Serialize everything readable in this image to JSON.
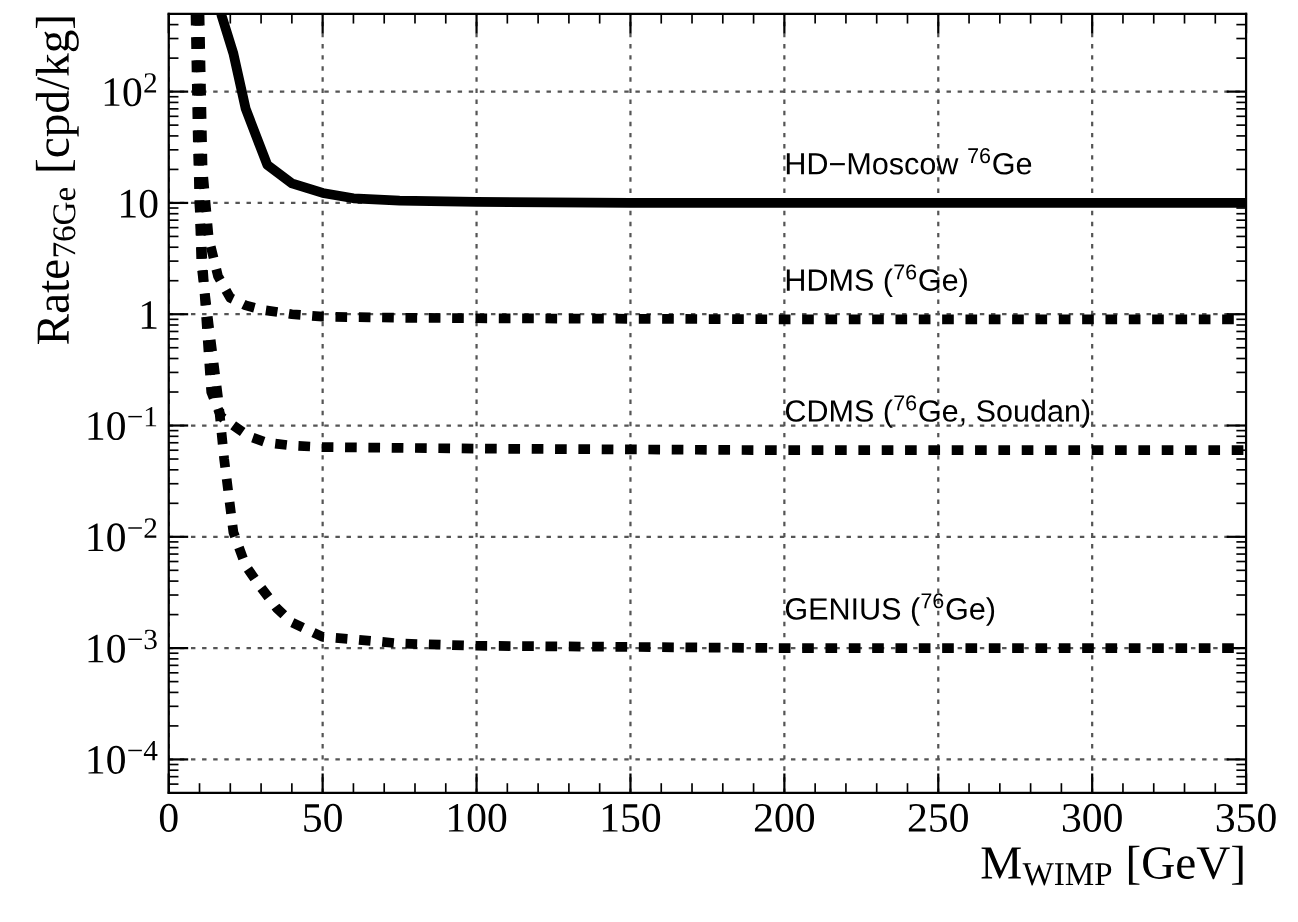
{
  "chart_data": {
    "type": "line",
    "xlabel": "M$_{WIMP}$ [GeV]",
    "ylabel": "Rate$_{76Ge}$ [cpd/kg]",
    "log": "y",
    "grid": true,
    "marker": "none",
    "xlim": [
      0,
      350
    ],
    "ylim": [
      5e-05,
      500
    ],
    "xticks": [
      0,
      50,
      100,
      150,
      200,
      250,
      300,
      350
    ],
    "yticks": [
      {
        "value": 0.0001,
        "label": "10$^{−4}$"
      },
      {
        "value": 0.001,
        "label": "10$^{−3}$"
      },
      {
        "value": 0.01,
        "label": "10$^{−2}$"
      },
      {
        "value": 0.1,
        "label": "10$^{−1}$"
      },
      {
        "value": 1,
        "label": "1"
      },
      {
        "value": 10,
        "label": "10"
      },
      {
        "value": 100,
        "label": "10$^{2}$"
      }
    ],
    "series": [
      {
        "name": "HD−Moscow $^{76}$Ge",
        "color": "#000000",
        "line_style": "solid",
        "x": [
          17,
          21,
          25,
          32,
          40,
          50,
          60,
          75,
          100,
          150,
          200,
          250,
          300,
          350
        ],
        "values": [
          500,
          220,
          70,
          22,
          15,
          12.3,
          11,
          10.5,
          10.2,
          10,
          10,
          10,
          10,
          10
        ]
      },
      {
        "name": "HDMS ($^{76}$Ge)",
        "color": "#000000",
        "line_style": "dashed",
        "x": [
          10,
          11,
          13,
          16,
          20,
          25,
          30,
          40,
          50,
          75,
          100,
          200,
          350
        ],
        "values": [
          500,
          20,
          4.8,
          2.2,
          1.4,
          1.2,
          1.1,
          1,
          0.95,
          0.93,
          0.92,
          0.9,
          0.9
        ]
      },
      {
        "name": "CDMS ($^{76}$Ge, Soudan)",
        "color": "#000000",
        "line_style": "dashed",
        "x": [
          9.5,
          10,
          11,
          13.8,
          17,
          21,
          26,
          32,
          40,
          50,
          100,
          200,
          350
        ],
        "values": [
          500,
          10,
          2.8,
          0.2,
          0.12,
          0.1,
          0.08,
          0.07,
          0.066,
          0.064,
          0.062,
          0.06,
          0.06
        ]
      },
      {
        "name": "GENIUS ($^{76}$Ge)",
        "color": "#000000",
        "line_style": "dashed",
        "x": [
          8.7,
          9.5,
          10.6,
          13,
          16,
          18,
          21,
          25,
          29,
          35,
          40,
          50,
          60,
          75,
          100,
          200,
          350
        ],
        "values": [
          500,
          30,
          2.8,
          0.8,
          0.18,
          0.05,
          0.011,
          0.0055,
          0.0038,
          0.0023,
          0.0017,
          0.00126,
          0.0012,
          0.0011,
          0.00105,
          0.001,
          0.001
        ]
      }
    ]
  }
}
